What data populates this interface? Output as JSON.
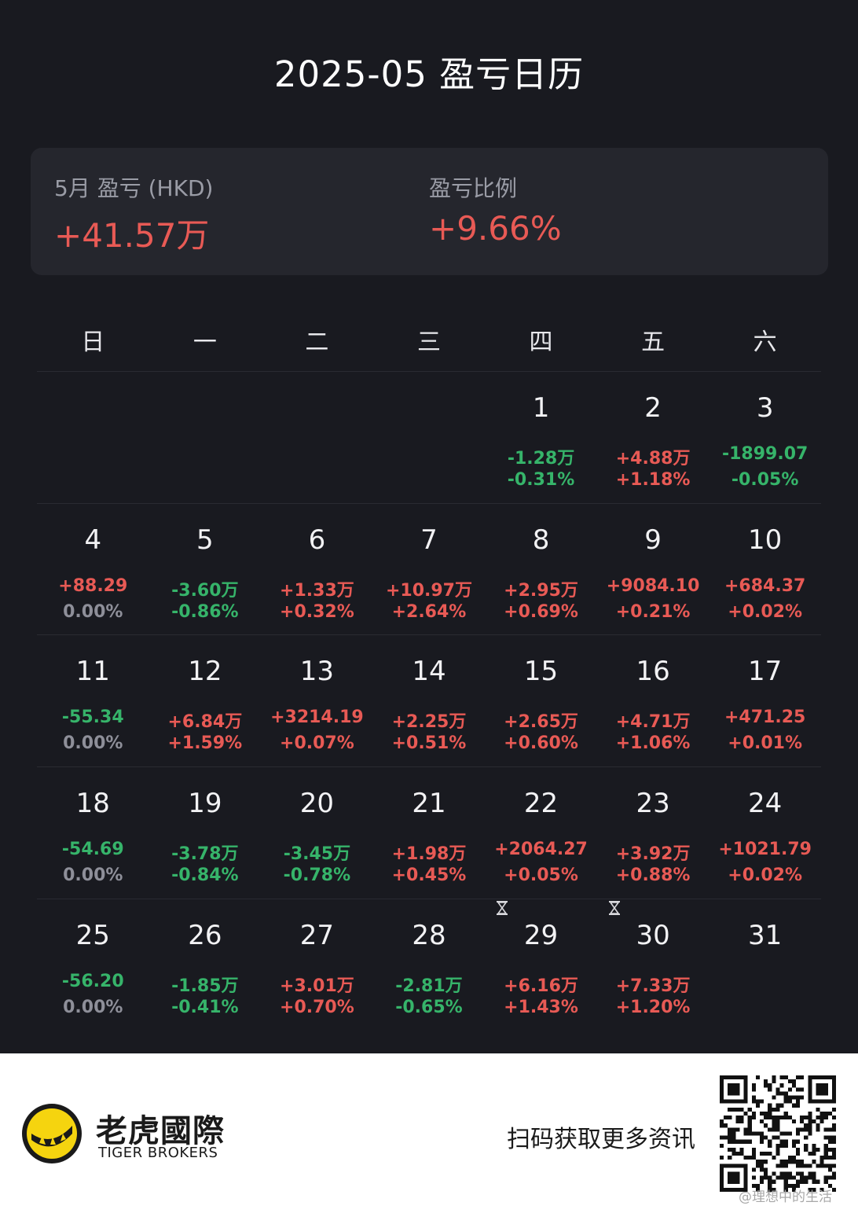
{
  "title": "2025-05 盈亏日历",
  "summary": {
    "pnl_label": "5月 盈亏 (HKD)",
    "pnl_value": "+41.57万",
    "ratio_label": "盈亏比例",
    "ratio_value": "+9.66%"
  },
  "weekdays": [
    "日",
    "一",
    "二",
    "三",
    "四",
    "五",
    "六"
  ],
  "weeks": [
    [
      null,
      null,
      null,
      null,
      {
        "day": "1",
        "pnl": "-1.28万",
        "pct": "-0.31%",
        "pnl_dir": "down",
        "pct_dir": "down"
      },
      {
        "day": "2",
        "pnl": "+4.88万",
        "pct": "+1.18%",
        "pnl_dir": "up",
        "pct_dir": "up"
      },
      {
        "day": "3",
        "pnl": "-1899.07",
        "pct": "-0.05%",
        "pnl_dir": "down",
        "pct_dir": "down"
      }
    ],
    [
      {
        "day": "4",
        "pnl": "+88.29",
        "pct": "0.00%",
        "pnl_dir": "up",
        "pct_dir": "flat"
      },
      {
        "day": "5",
        "pnl": "-3.60万",
        "pct": "-0.86%",
        "pnl_dir": "down",
        "pct_dir": "down"
      },
      {
        "day": "6",
        "pnl": "+1.33万",
        "pct": "+0.32%",
        "pnl_dir": "up",
        "pct_dir": "up"
      },
      {
        "day": "7",
        "pnl": "+10.97万",
        "pct": "+2.64%",
        "pnl_dir": "up",
        "pct_dir": "up"
      },
      {
        "day": "8",
        "pnl": "+2.95万",
        "pct": "+0.69%",
        "pnl_dir": "up",
        "pct_dir": "up"
      },
      {
        "day": "9",
        "pnl": "+9084.10",
        "pct": "+0.21%",
        "pnl_dir": "up",
        "pct_dir": "up"
      },
      {
        "day": "10",
        "pnl": "+684.37",
        "pct": "+0.02%",
        "pnl_dir": "up",
        "pct_dir": "up"
      }
    ],
    [
      {
        "day": "11",
        "pnl": "-55.34",
        "pct": "0.00%",
        "pnl_dir": "down",
        "pct_dir": "flat"
      },
      {
        "day": "12",
        "pnl": "+6.84万",
        "pct": "+1.59%",
        "pnl_dir": "up",
        "pct_dir": "up"
      },
      {
        "day": "13",
        "pnl": "+3214.19",
        "pct": "+0.07%",
        "pnl_dir": "up",
        "pct_dir": "up"
      },
      {
        "day": "14",
        "pnl": "+2.25万",
        "pct": "+0.51%",
        "pnl_dir": "up",
        "pct_dir": "up"
      },
      {
        "day": "15",
        "pnl": "+2.65万",
        "pct": "+0.60%",
        "pnl_dir": "up",
        "pct_dir": "up"
      },
      {
        "day": "16",
        "pnl": "+4.71万",
        "pct": "+1.06%",
        "pnl_dir": "up",
        "pct_dir": "up"
      },
      {
        "day": "17",
        "pnl": "+471.25",
        "pct": "+0.01%",
        "pnl_dir": "up",
        "pct_dir": "up"
      }
    ],
    [
      {
        "day": "18",
        "pnl": "-54.69",
        "pct": "0.00%",
        "pnl_dir": "down",
        "pct_dir": "flat"
      },
      {
        "day": "19",
        "pnl": "-3.78万",
        "pct": "-0.84%",
        "pnl_dir": "down",
        "pct_dir": "down"
      },
      {
        "day": "20",
        "pnl": "-3.45万",
        "pct": "-0.78%",
        "pnl_dir": "down",
        "pct_dir": "down"
      },
      {
        "day": "21",
        "pnl": "+1.98万",
        "pct": "+0.45%",
        "pnl_dir": "up",
        "pct_dir": "up"
      },
      {
        "day": "22",
        "pnl": "+2064.27",
        "pct": "+0.05%",
        "pnl_dir": "up",
        "pct_dir": "up"
      },
      {
        "day": "23",
        "pnl": "+3.92万",
        "pct": "+0.88%",
        "pnl_dir": "up",
        "pct_dir": "up"
      },
      {
        "day": "24",
        "pnl": "+1021.79",
        "pct": "+0.02%",
        "pnl_dir": "up",
        "pct_dir": "up"
      }
    ],
    [
      {
        "day": "25",
        "pnl": "-56.20",
        "pct": "0.00%",
        "pnl_dir": "down",
        "pct_dir": "flat"
      },
      {
        "day": "26",
        "pnl": "-1.85万",
        "pct": "-0.41%",
        "pnl_dir": "down",
        "pct_dir": "down"
      },
      {
        "day": "27",
        "pnl": "+3.01万",
        "pct": "+0.70%",
        "pnl_dir": "up",
        "pct_dir": "up"
      },
      {
        "day": "28",
        "pnl": "-2.81万",
        "pct": "-0.65%",
        "pnl_dir": "down",
        "pct_dir": "down"
      },
      {
        "day": "29",
        "pnl": "+6.16万",
        "pct": "+1.43%",
        "pnl_dir": "up",
        "pct_dir": "up",
        "pending_icon": "hourglass-icon"
      },
      {
        "day": "30",
        "pnl": "+7.33万",
        "pct": "+1.20%",
        "pnl_dir": "up",
        "pct_dir": "up",
        "pending_icon": "hourglass-icon"
      },
      {
        "day": "31",
        "pnl": "",
        "pct": "",
        "pnl_dir": "flat",
        "pct_dir": "flat"
      }
    ]
  ],
  "colors": {
    "background": "#191a20",
    "card": "#25262d",
    "up": "#e85a55",
    "down": "#36b46a",
    "flat": "#8e8f99",
    "footer": "#ffffff",
    "logo_yellow": "#f5d40f"
  },
  "footer": {
    "brand_cn": "老虎國際",
    "brand_en": "TIGER BROKERS",
    "scan_text": "扫码获取更多资讯",
    "logo_icon": "tiger-logo-icon",
    "qr_icon": "qr-code-icon",
    "watermark": "@理想中的生活"
  }
}
